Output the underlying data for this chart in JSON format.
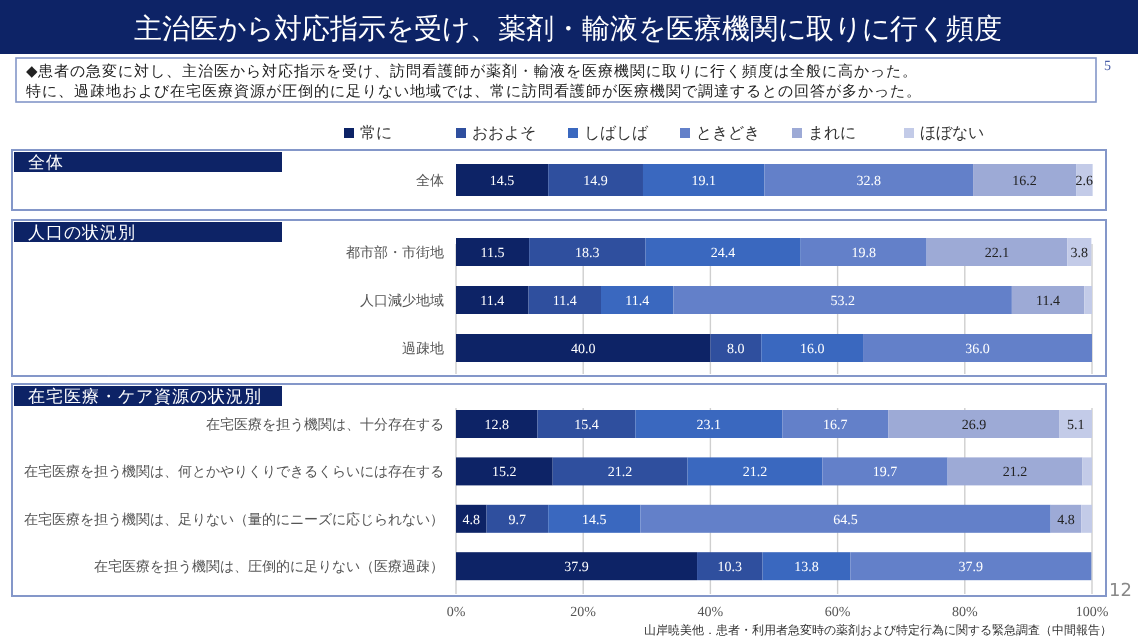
{
  "chart_data": {
    "type": "bar",
    "orientation": "horizontal",
    "stacked": true,
    "title": "主治医から対応指示を受け、薬剤・輸液を医療機関に取りに行く頻度",
    "categories": [
      "全体",
      "都市部・市街地",
      "人口減少地域",
      "過疎地",
      "在宅医療を担う機関は、十分存在する",
      "在宅医療を担う機関は、何とかやりくりできるくらいには存在する",
      "在宅医療を担う機関は、足りない（量的にニーズに応じられない）",
      "在宅医療を担う機関は、圧倒的に足りない（医療過疎）"
    ],
    "xlim": [
      0,
      100
    ],
    "xticks": [
      {
        "value": 0,
        "label": "0%"
      },
      {
        "value": 20,
        "label": "20%"
      },
      {
        "value": 40,
        "label": "40%"
      },
      {
        "value": 60,
        "label": "60%"
      },
      {
        "value": 80,
        "label": "80%"
      },
      {
        "value": 100,
        "label": "100%"
      }
    ],
    "grid": "x",
    "legend": "top",
    "annotations": [
      "◆患者の急変に対し、主治医から対応指示を受け、訪問看護師が薬剤・輸液を医療機関に取りに行く頻度は全般に高かった。",
      "特に、過疎地および在宅医療資源が圧倒的に足りない地域では、常に訪問看護師が医療機関で調達するとの回答が多かった。",
      "5",
      "全体",
      "人口の状況別",
      "在宅医療・ケア資源の状況別",
      "12",
      "山岸暁美他．患者・利用者急変時の薬剤および特定行為に関する緊急調査（中間報告）"
    ],
    "series": [
      {
        "name": "常に",
        "color": "#0d2366",
        "values": [
          14.5,
          11.5,
          11.4,
          40.0,
          12.8,
          15.2,
          4.8,
          37.9
        ],
        "value_labels": [
          "14.5",
          "11.5",
          "11.4",
          "40.0",
          "12.8",
          "15.2",
          "4.8",
          "37.9"
        ]
      },
      {
        "name": "おおよそ",
        "color": "#2f4f9e",
        "values": [
          14.9,
          18.3,
          11.4,
          8.0,
          15.4,
          21.2,
          9.7,
          10.3
        ],
        "value_labels": [
          "14.9",
          "18.3",
          "11.4",
          "8.0",
          "15.4",
          "21.2",
          "9.7",
          "10.3"
        ]
      },
      {
        "name": "しばしば",
        "color": "#3a68bf",
        "values": [
          19.1,
          24.4,
          11.4,
          16.0,
          23.1,
          21.2,
          14.5,
          13.8
        ],
        "value_labels": [
          "19.1",
          "24.4",
          "11.4",
          "16.0",
          "23.1",
          "21.2",
          "14.5",
          "13.8"
        ]
      },
      {
        "name": "ときどき",
        "color": "#6380c9",
        "values": [
          32.8,
          19.8,
          53.2,
          36.0,
          16.7,
          19.7,
          64.5,
          37.9
        ],
        "value_labels": [
          "32.8",
          "19.8",
          "53.2",
          "36.0",
          "16.7",
          "19.7",
          "64.5",
          "37.9"
        ]
      },
      {
        "name": "まれに",
        "color": "#9daad6",
        "values": [
          16.2,
          22.1,
          11.4,
          null,
          26.9,
          21.2,
          4.8,
          null
        ],
        "value_labels": [
          "16.2",
          "22.1",
          "11.4",
          null,
          "26.9",
          "21.2",
          "4.8",
          null
        ]
      },
      {
        "name": "ほぼない",
        "color": "#c3cbe8",
        "values": [
          2.6,
          3.8,
          1.2,
          null,
          5.1,
          1.5,
          1.7,
          null
        ],
        "value_labels": [
          "2.6",
          "3.8",
          null,
          null,
          "5.1",
          null,
          null,
          null
        ]
      }
    ]
  }
}
